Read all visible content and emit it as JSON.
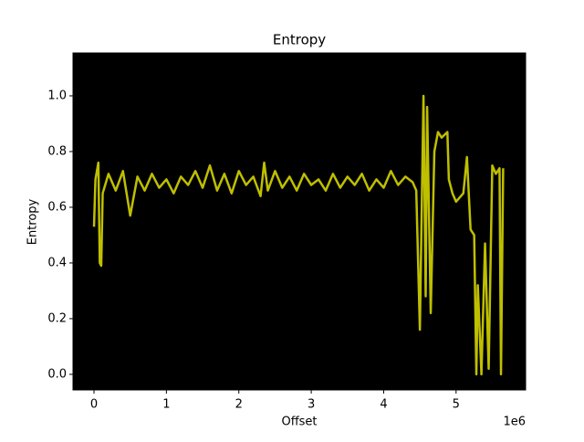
{
  "chart_data": {
    "type": "line",
    "title": "Entropy",
    "x_label": "Offset",
    "y_label": "Entropy",
    "x_offset_label": "1e6",
    "x": [
      0,
      0.02,
      0.06,
      0.08,
      0.1,
      0.12,
      0.2,
      0.3,
      0.4,
      0.5,
      0.6,
      0.7,
      0.8,
      0.9,
      1.0,
      1.1,
      1.2,
      1.3,
      1.4,
      1.5,
      1.6,
      1.7,
      1.8,
      1.9,
      2.0,
      2.1,
      2.2,
      2.3,
      2.35,
      2.4,
      2.5,
      2.6,
      2.7,
      2.8,
      2.9,
      3.0,
      3.1,
      3.2,
      3.3,
      3.4,
      3.5,
      3.6,
      3.7,
      3.8,
      3.9,
      4.0,
      4.1,
      4.2,
      4.3,
      4.4,
      4.45,
      4.5,
      4.55,
      4.58,
      4.6,
      4.65,
      4.7,
      4.75,
      4.8,
      4.88,
      4.9,
      4.95,
      5.0,
      5.1,
      5.15,
      5.2,
      5.25,
      5.28,
      5.3,
      5.35,
      5.4,
      5.45,
      5.5,
      5.55,
      5.6,
      5.62,
      5.65
    ],
    "series": [
      {
        "name": "Entropy",
        "color": "#bfbf00",
        "values": [
          0.53,
          0.7,
          0.76,
          0.4,
          0.39,
          0.65,
          0.72,
          0.66,
          0.73,
          0.57,
          0.71,
          0.66,
          0.72,
          0.67,
          0.7,
          0.65,
          0.71,
          0.68,
          0.73,
          0.67,
          0.75,
          0.66,
          0.72,
          0.65,
          0.73,
          0.68,
          0.71,
          0.64,
          0.76,
          0.66,
          0.73,
          0.67,
          0.71,
          0.66,
          0.72,
          0.68,
          0.7,
          0.66,
          0.72,
          0.67,
          0.71,
          0.68,
          0.72,
          0.66,
          0.7,
          0.67,
          0.73,
          0.68,
          0.71,
          0.69,
          0.66,
          0.16,
          1.0,
          0.28,
          0.96,
          0.22,
          0.8,
          0.87,
          0.85,
          0.87,
          0.7,
          0.65,
          0.62,
          0.65,
          0.78,
          0.52,
          0.5,
          0.0,
          0.32,
          0.0,
          0.47,
          0.02,
          0.75,
          0.72,
          0.74,
          0.0,
          0.74
        ]
      }
    ],
    "xlim": [
      -0.29,
      5.96
    ],
    "ylim": [
      -0.056,
      1.154
    ],
    "xticks": [
      0,
      1,
      2,
      3,
      4,
      5
    ],
    "yticks": [
      {
        "value": 0,
        "label": "0.0"
      },
      0.2,
      0.4,
      0.6,
      0.8,
      {
        "value": 1,
        "label": "1.0"
      }
    ],
    "background": "#000000"
  }
}
